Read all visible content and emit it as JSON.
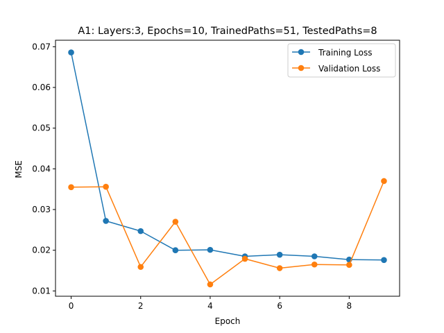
{
  "chart_data": {
    "type": "line",
    "title": "A1: Layers:3, Epochs=10, TrainedPaths=51, TestedPaths=8",
    "xlabel": "Epoch",
    "ylabel": "MSE",
    "xlim": [
      -0.45,
      9.45
    ],
    "ylim": [
      0.0087,
      0.0716
    ],
    "xticks": [
      0,
      2,
      4,
      6,
      8
    ],
    "xtick_labels": [
      "0",
      "2",
      "4",
      "6",
      "8"
    ],
    "yticks": [
      0.01,
      0.02,
      0.03,
      0.04,
      0.05,
      0.06,
      0.07
    ],
    "ytick_labels": [
      "0.01",
      "0.02",
      "0.03",
      "0.04",
      "0.05",
      "0.06",
      "0.07"
    ],
    "grid": false,
    "legend_position": "top-right",
    "x": [
      0,
      1,
      2,
      3,
      4,
      5,
      6,
      7,
      8,
      9
    ],
    "series": [
      {
        "name": "Training Loss",
        "color": "#1f77b4",
        "marker": "circle",
        "values": [
          0.0686,
          0.0272,
          0.0247,
          0.02,
          0.0201,
          0.0185,
          0.0189,
          0.0185,
          0.0177,
          0.0176
        ]
      },
      {
        "name": "Validation Loss",
        "color": "#ff7f0e",
        "marker": "circle",
        "values": [
          0.0355,
          0.0356,
          0.0159,
          0.027,
          0.0116,
          0.0179,
          0.0156,
          0.0165,
          0.0164,
          0.037
        ]
      }
    ]
  }
}
